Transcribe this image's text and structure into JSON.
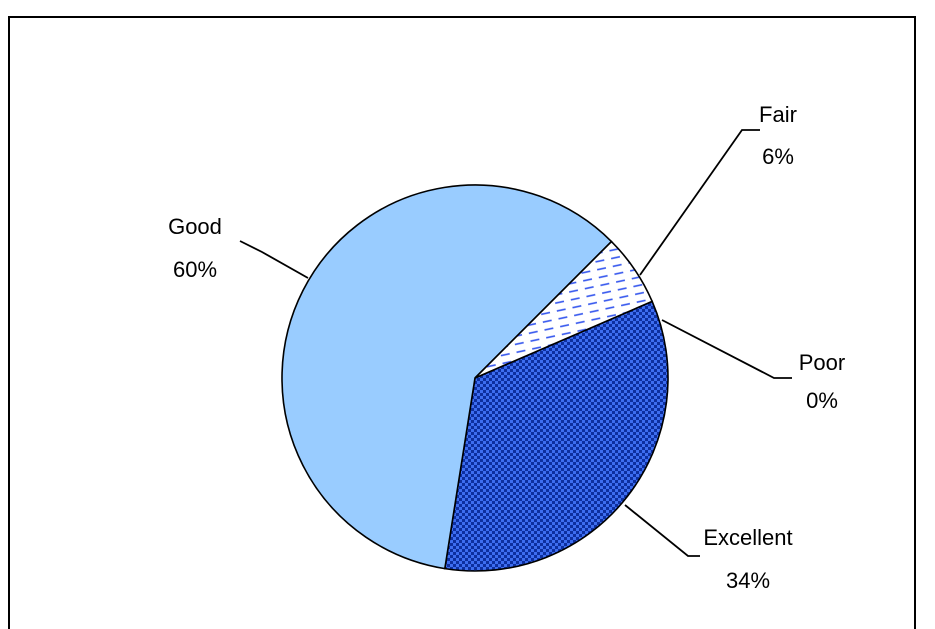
{
  "chart_data": {
    "type": "pie",
    "slices": [
      {
        "label": "Excellent",
        "value": 34,
        "value_label": "34%",
        "color": "#1f4fbf",
        "pattern": "dots-blue"
      },
      {
        "label": "Good",
        "value": 60,
        "value_label": "60%",
        "color": "#99ccff",
        "pattern": "solid"
      },
      {
        "label": "Fair",
        "value": 6,
        "value_label": "6%",
        "color": "#ffffff",
        "pattern": "dashes-blue"
      },
      {
        "label": "Poor",
        "value": 0,
        "value_label": "0%",
        "color": "#c0c0c0",
        "pattern": "solid"
      }
    ]
  }
}
